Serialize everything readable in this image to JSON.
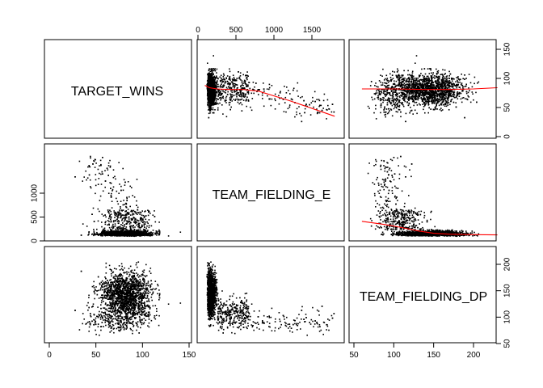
{
  "chart_data": {
    "type": "scatter",
    "kind": "scatterplot-matrix",
    "variables": [
      {
        "name": "TARGET_WINS",
        "range": [
          0,
          146
        ],
        "ticks": [
          0,
          50,
          100,
          150
        ]
      },
      {
        "name": "TEAM_FIELDING_E",
        "range": [
          65,
          1898
        ],
        "ticks": [
          0,
          500,
          1000,
          1500
        ]
      },
      {
        "name": "TEAM_FIELDING_DP",
        "range": [
          52,
          228
        ],
        "ticks": [
          50,
          100,
          150,
          200
        ]
      }
    ],
    "axis_ticks": {
      "top": {
        "variable": "TEAM_FIELDING_E",
        "labels": [
          "0",
          "500",
          "1000",
          "1500"
        ]
      },
      "right": {
        "variable": "TARGET_WINS",
        "labels": [
          "0",
          "50",
          "100",
          "150"
        ]
      },
      "left": {
        "variable": "TEAM_FIELDING_E",
        "labels": [
          "0",
          "500",
          "1000"
        ]
      },
      "bottom": {
        "variable": "TARGET_WINS",
        "labels": [
          "0",
          "50",
          "100",
          "150"
        ]
      },
      "bottom2": {
        "variable": "TEAM_FIELDING_DP",
        "labels": [
          "50",
          "100",
          "150",
          "200"
        ]
      },
      "right2": {
        "variable": "TEAM_FIELDING_DP",
        "labels": [
          "50",
          "100",
          "150",
          "200"
        ]
      }
    },
    "smoothers": {
      "wins_vs_fielding_e": [
        [
          90,
          88
        ],
        [
          150,
          84
        ],
        [
          250,
          82
        ],
        [
          400,
          81
        ],
        [
          600,
          81
        ],
        [
          800,
          78
        ],
        [
          1000,
          70
        ],
        [
          1200,
          62
        ],
        [
          1400,
          53
        ],
        [
          1600,
          44
        ],
        [
          1800,
          35
        ]
      ],
      "wins_vs_fielding_dp": [
        [
          60,
          82
        ],
        [
          100,
          82
        ],
        [
          140,
          81
        ],
        [
          170,
          81
        ],
        [
          200,
          82
        ],
        [
          230,
          84
        ]
      ],
      "fielding_e_vs_fielding_dp": [
        [
          60,
          410
        ],
        [
          90,
          340
        ],
        [
          110,
          280
        ],
        [
          130,
          210
        ],
        [
          150,
          160
        ],
        [
          170,
          140
        ],
        [
          200,
          130
        ],
        [
          230,
          125
        ]
      ]
    },
    "point_count": 2000,
    "grid": false,
    "legend": "none",
    "colors": {
      "points": "#000000",
      "smoother": "#ff0000"
    }
  }
}
